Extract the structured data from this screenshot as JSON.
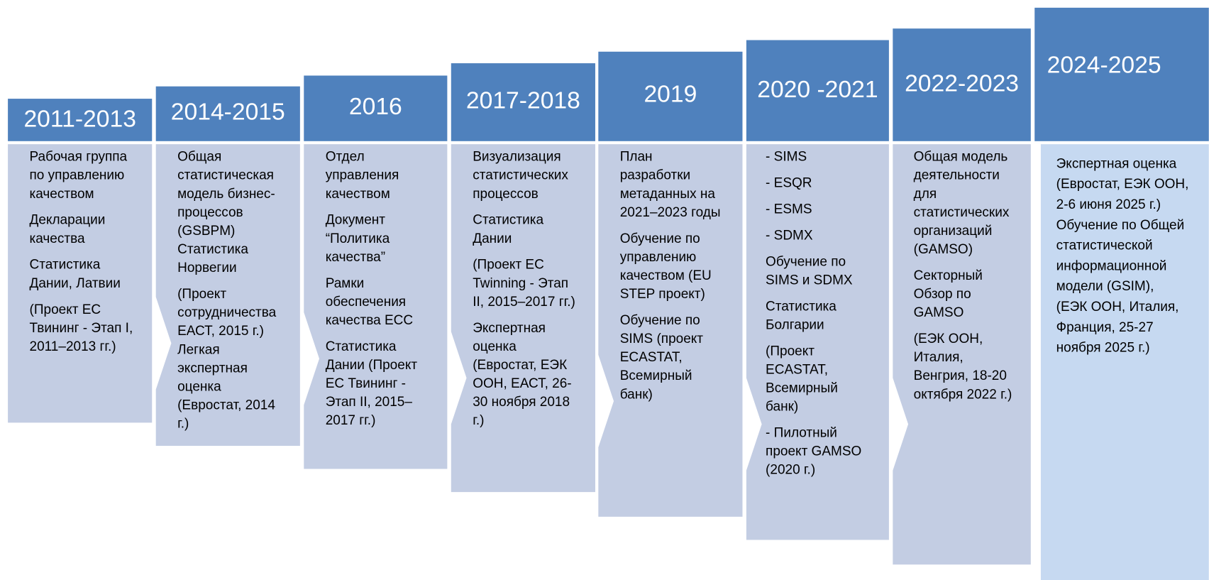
{
  "columns": [
    {
      "period": "2011-2013",
      "paragraphs": [
        [
          "Рабочая группа",
          "по управлению",
          "качеством"
        ],
        [
          "Декларации",
          "качества"
        ],
        [
          "Статистика",
          "Дании, Латвии"
        ],
        [
          "(Проект ЕС",
          "Твининг - Этап I,",
          "2011–2013 гг.)"
        ]
      ]
    },
    {
      "period": "2014-2015",
      "paragraphs": [
        [
          "Общая",
          "статистическая",
          "модель бизнес-",
          "процессов",
          "(GSBPM)",
          "Статистика",
          "Норвегии"
        ],
        [
          "(Проект",
          "сотрудничества",
          "ЕАСТ, 2015 г.)",
          "Легкая",
          "экспертная",
          "оценка",
          "(Евростат, 2014",
          "г.)"
        ]
      ]
    },
    {
      "period": "2016",
      "paragraphs": [
        [
          "Отдел",
          "управления",
          "качеством"
        ],
        [
          "Документ",
          "“Политика",
          "качества”"
        ],
        [
          "Рамки",
          "обеспечения",
          "качества ЕСС"
        ],
        [
          "Статистика",
          "Дании (Проект",
          "ЕС Твининг -",
          "Этап  II, 2015–",
          "2017 гг.)"
        ]
      ]
    },
    {
      "period": "2017-2018",
      "paragraphs": [
        [
          "Визуализация",
          "статистических",
          "процессов"
        ],
        [
          "Статистика",
          "Дании"
        ],
        [
          "(Проект ЕС",
          "Twinning - Этап",
          "II, 2015–2017 гг.)"
        ],
        [
          "Экспертная",
          "оценка",
          "(Евростат, ЕЭК",
          "ООН, ЕАСТ, 26-",
          "30 ноября 2018",
          "г.)"
        ]
      ]
    },
    {
      "period": "2019",
      "paragraphs": [
        [
          "План",
          "разработки",
          "метаданных на",
          "2021–2023 годы"
        ],
        [
          "Обучение по",
          "управлению",
          "качеством (EU",
          "STEP проект)"
        ],
        [
          "Обучение по",
          "SIMS (проект",
          "ECASTAT,",
          "Всемирный",
          "банк)"
        ]
      ]
    },
    {
      "period": "2020 -2021",
      "paragraphs": [
        [
          "- SIMS"
        ],
        [
          "- ESQR"
        ],
        [
          "- ESMS"
        ],
        [
          "- SDMX"
        ],
        [
          "Обучение по",
          "SIMS и SDMX"
        ],
        [
          "Статистика",
          "Болгарии"
        ],
        [
          "(Проект",
          "ECASTAT,",
          "Всемирный",
          "банк)"
        ],
        [
          "- Пилотный",
          "проект GAMSO",
          "(2020 г.)"
        ]
      ]
    },
    {
      "period": "2022-2023",
      "paragraphs": [
        [
          "Общая модель",
          "деятельности",
          "для",
          "статистических",
          "организаций",
          "(GAMSO)"
        ],
        [
          "Секторный",
          "Обзор по",
          "GAMSO"
        ],
        [
          "(ЕЭК ООН,",
          "Италия,",
          "Венгрия, 18-20",
          "октября 2022 г.)"
        ]
      ]
    },
    {
      "period": "2024-2025",
      "paragraphs": [
        [
          "Экспертная оценка",
          "(Евростат, ЕЭК ООН,",
          "2-6 июня 2025 г.)",
          "Обучение по Общей",
          "статистической",
          "информационной",
          "модели (GSIM),",
          "(ЕЭК ООН, Италия,",
          "Франция, 25-27",
          "ноября 2025 г.)"
        ]
      ]
    }
  ]
}
